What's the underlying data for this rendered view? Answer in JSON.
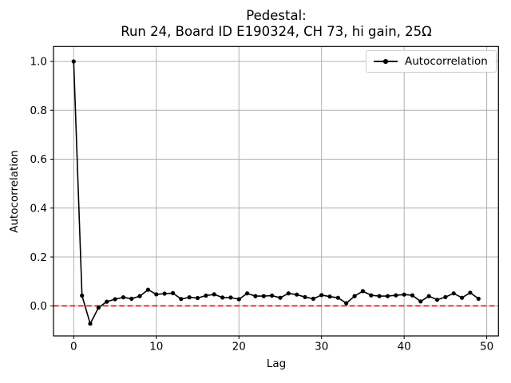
{
  "chart": {
    "title_line1": "Pedestal:",
    "title_line2": "Run 24, Board ID E190324, CH 73, hi gain, 25Ω",
    "xlabel": "Lag",
    "ylabel": "Autocorrelation",
    "legend_label": "Autocorrelation"
  },
  "colors": {
    "series": "#000000",
    "zero_line": "#ff0000",
    "grid": "#b0b0b0",
    "frame": "#000000",
    "legend_border": "#cccccc",
    "background": "#ffffff"
  },
  "chart_data": {
    "type": "line",
    "title": "Pedestal:\nRun 24, Board ID E190324, CH 73, hi gain, 25Ω",
    "xlabel": "Lag",
    "ylabel": "Autocorrelation",
    "grid": true,
    "legend_position": "upper right",
    "xlim": [
      -2.45,
      51.42
    ],
    "ylim": [
      -0.123,
      1.061
    ],
    "xtick_values": [
      0,
      10,
      20,
      30,
      40,
      50
    ],
    "xtick_labels": [
      "0",
      "10",
      "20",
      "30",
      "40",
      "50"
    ],
    "ytick_values": [
      0.0,
      0.2,
      0.4,
      0.6,
      0.8,
      1.0
    ],
    "ytick_labels": [
      "0.0",
      "0.2",
      "0.4",
      "0.6",
      "0.8",
      "1.0"
    ],
    "zero_line": {
      "y": 0.0,
      "color": "#ff0000",
      "style": "dashed"
    },
    "series": [
      {
        "name": "Autocorrelation",
        "color": "#000000",
        "marker": "circle",
        "x": [
          0,
          1,
          2,
          3,
          4,
          5,
          6,
          7,
          8,
          9,
          10,
          11,
          12,
          13,
          14,
          15,
          16,
          17,
          18,
          19,
          20,
          21,
          22,
          23,
          24,
          25,
          26,
          27,
          28,
          29,
          30,
          31,
          32,
          33,
          34,
          35,
          36,
          37,
          38,
          39,
          40,
          41,
          42,
          43,
          44,
          45,
          46,
          47,
          48,
          49
        ],
        "y": [
          1.0,
          0.042,
          -0.073,
          -0.007,
          0.017,
          0.027,
          0.035,
          0.029,
          0.04,
          0.066,
          0.047,
          0.05,
          0.052,
          0.028,
          0.035,
          0.032,
          0.042,
          0.047,
          0.034,
          0.034,
          0.027,
          0.051,
          0.04,
          0.04,
          0.042,
          0.033,
          0.051,
          0.046,
          0.036,
          0.029,
          0.044,
          0.038,
          0.033,
          0.011,
          0.04,
          0.06,
          0.043,
          0.04,
          0.04,
          0.043,
          0.046,
          0.043,
          0.018,
          0.04,
          0.025,
          0.036,
          0.051,
          0.033,
          0.054,
          0.029
        ]
      }
    ]
  }
}
